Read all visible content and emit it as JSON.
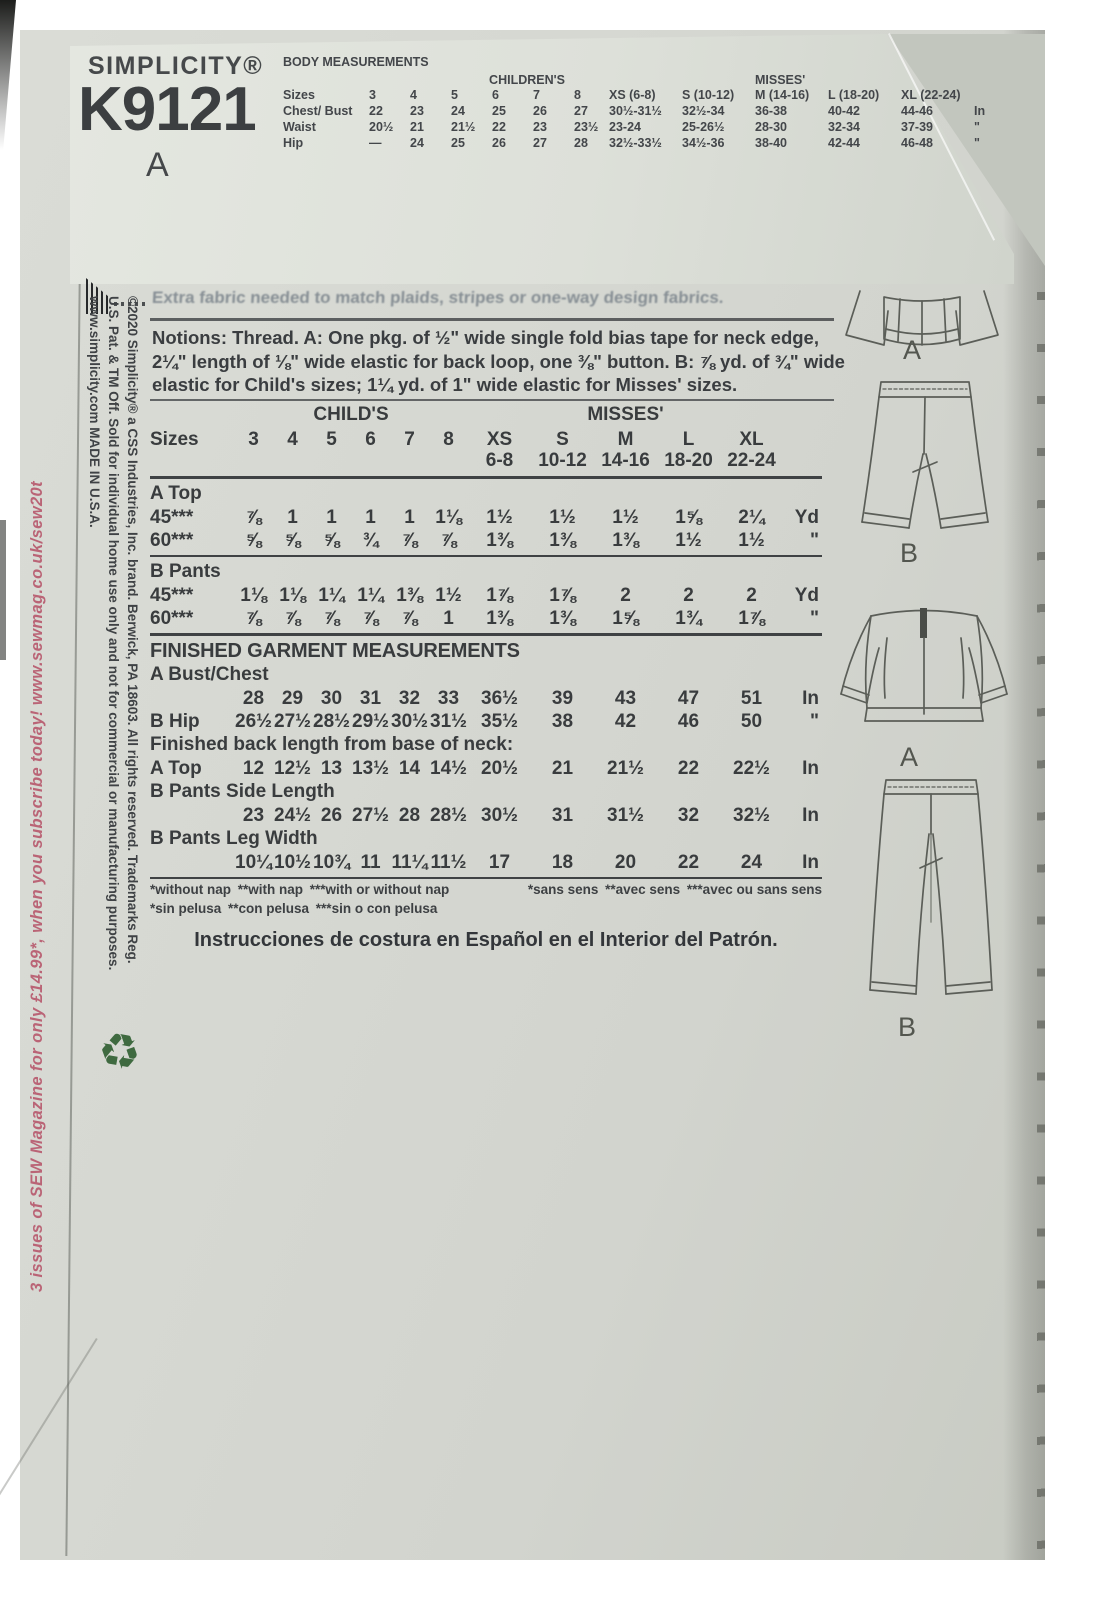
{
  "header": {
    "brand": "SIMPLICITY®",
    "pattern_number": "K9121",
    "view": "A"
  },
  "body_measurements": {
    "title": "BODY MEASUREMENTS",
    "children_header": "CHILDREN'S",
    "misses_header": "MISSES'",
    "rows": [
      {
        "label": "Sizes",
        "children": [
          "3",
          "4",
          "5",
          "6",
          "7",
          "8"
        ],
        "misses": [
          "XS (6-8)",
          "S (10-12)",
          "M (14-16)",
          "L (18-20)",
          "XL (22-24)"
        ],
        "unit": ""
      },
      {
        "label": "Chest/ Bust",
        "children": [
          "22",
          "23",
          "24",
          "25",
          "26",
          "27"
        ],
        "misses": [
          "30½-31½",
          "32½-34",
          "36-38",
          "40-42",
          "44-46"
        ],
        "unit": "In"
      },
      {
        "label": "Waist",
        "children": [
          "20½",
          "21",
          "21½",
          "22",
          "23",
          "23½"
        ],
        "misses": [
          "23-24",
          "25-26½",
          "28-30",
          "32-34",
          "37-39"
        ],
        "unit": "\""
      },
      {
        "label": "Hip",
        "children": [
          "—",
          "24",
          "25",
          "26",
          "27",
          "28"
        ],
        "misses": [
          "32½-33½",
          "34½-36",
          "38-40",
          "42-44",
          "46-48"
        ],
        "unit": "\""
      }
    ]
  },
  "notes": {
    "faded_line": "Extra fabric needed to match plaids, stripes or one-way design fabrics.",
    "notions": "Notions: Thread. A: One pkg. of ½\" wide single fold bias tape for neck edge, 2¼\" length of ⅛\" wide elastic for back loop, one ⅜\" button. B: ⅞ yd. of ¾\" wide elastic for Child's sizes; 1¼ yd. of 1\" wide elastic for Misses' sizes."
  },
  "yardage_table": {
    "childs_header": "CHILD'S",
    "misses_header": "MISSES'",
    "rows": [
      {
        "type": "data",
        "label": "Sizes",
        "values": [
          "3",
          "4",
          "5",
          "6",
          "7",
          "8",
          "XS",
          "S",
          "M",
          "L",
          "XL"
        ],
        "unit": ""
      },
      {
        "type": "sub",
        "label": "",
        "values": [
          "",
          "",
          "",
          "",
          "",
          "",
          "6-8",
          "10-12",
          "14-16",
          "18-20",
          "22-24"
        ],
        "unit": ""
      },
      {
        "type": "rule"
      },
      {
        "type": "section",
        "label": "A Top"
      },
      {
        "type": "data",
        "label": "45***",
        "values": [
          "⅞",
          "1",
          "1",
          "1",
          "1",
          "1⅛",
          "1½",
          "1½",
          "1½",
          "1⅝",
          "2¼"
        ],
        "unit": "Yd"
      },
      {
        "type": "data",
        "label": "60***",
        "values": [
          "⅝",
          "⅝",
          "⅝",
          "¾",
          "⅞",
          "⅞",
          "1⅜",
          "1⅜",
          "1⅜",
          "1½",
          "1½"
        ],
        "unit": "\""
      },
      {
        "type": "rule"
      },
      {
        "type": "section",
        "label": "B Pants"
      },
      {
        "type": "data",
        "label": "45***",
        "values": [
          "1⅛",
          "1⅛",
          "1¼",
          "1¼",
          "1⅜",
          "1½",
          "1⅞",
          "1⅞",
          "2",
          "2",
          "2"
        ],
        "unit": "Yd"
      },
      {
        "type": "data",
        "label": "60***",
        "values": [
          "⅞",
          "⅞",
          "⅞",
          "⅞",
          "⅞",
          "1",
          "1⅜",
          "1⅜",
          "1⅝",
          "1¾",
          "1⅞"
        ],
        "unit": "\""
      },
      {
        "type": "rule"
      },
      {
        "type": "section-big",
        "label": "FINISHED GARMENT MEASUREMENTS"
      },
      {
        "type": "section",
        "label": "A Bust/Chest"
      },
      {
        "type": "data",
        "label": "",
        "values": [
          "28",
          "29",
          "30",
          "31",
          "32",
          "33",
          "36½",
          "39",
          "43",
          "47",
          "51"
        ],
        "unit": "In"
      },
      {
        "type": "data",
        "label": "B Hip",
        "values": [
          "26½",
          "27½",
          "28½",
          "29½",
          "30½",
          "31½",
          "35½",
          "38",
          "42",
          "46",
          "50"
        ],
        "unit": "\""
      },
      {
        "type": "section",
        "label": "Finished back length from base of neck:"
      },
      {
        "type": "data",
        "label": "A Top",
        "values": [
          "12",
          "12½",
          "13",
          "13½",
          "14",
          "14½",
          "20½",
          "21",
          "21½",
          "22",
          "22½"
        ],
        "unit": "In"
      },
      {
        "type": "section",
        "label": "B Pants Side Length"
      },
      {
        "type": "data",
        "label": "",
        "values": [
          "23",
          "24½",
          "26",
          "27½",
          "28",
          "28½",
          "30½",
          "31",
          "31½",
          "32",
          "32½"
        ],
        "unit": "In"
      },
      {
        "type": "section",
        "label": "B Pants Leg Width"
      },
      {
        "type": "data",
        "label": "",
        "values": [
          "10¼",
          "10½",
          "10¾",
          "11",
          "11¼",
          "11½",
          "17",
          "18",
          "20",
          "22",
          "24"
        ],
        "unit": "In"
      },
      {
        "type": "rule"
      }
    ],
    "footnotes": {
      "english": "*without nap **with nap ***with or without nap",
      "french": "*sans sens **avec sens ***avec ou sans sens",
      "spanish": "*sin pelusa **con pelusa ***sin o con pelusa"
    },
    "spanish_note": "Instrucciones de costura en Español en el Interior del Patrón."
  },
  "side_texts": {
    "promo": "3 issues of SEW Magazine for only £14.99*, when you subscribe today! www.sewmag.co.uk/sew20t",
    "copyright_lines": [
      "©2020 Simplicity® a CSS Industries, Inc. brand. Berwick, PA 18603. All rights reserved. Trademarks Reg.",
      "U.S. Pat. & TM Off. Sold for individual home use only and not for commercial or manufacturing purposes.",
      "www.simplicity.com   MADE IN U.S.A."
    ]
  },
  "icons": {
    "recycle": "♻"
  },
  "illustrations": {
    "top_hem_label": "A",
    "shorts_label": "B",
    "top_back_label": "A",
    "pants_label": "B"
  },
  "colors": {
    "paper": "#d6d8d2",
    "flap": "#e0e3dc",
    "ink": "#3a3d3f",
    "promo_pink": "#ba6476",
    "recycle_green": "#3f6a40"
  }
}
